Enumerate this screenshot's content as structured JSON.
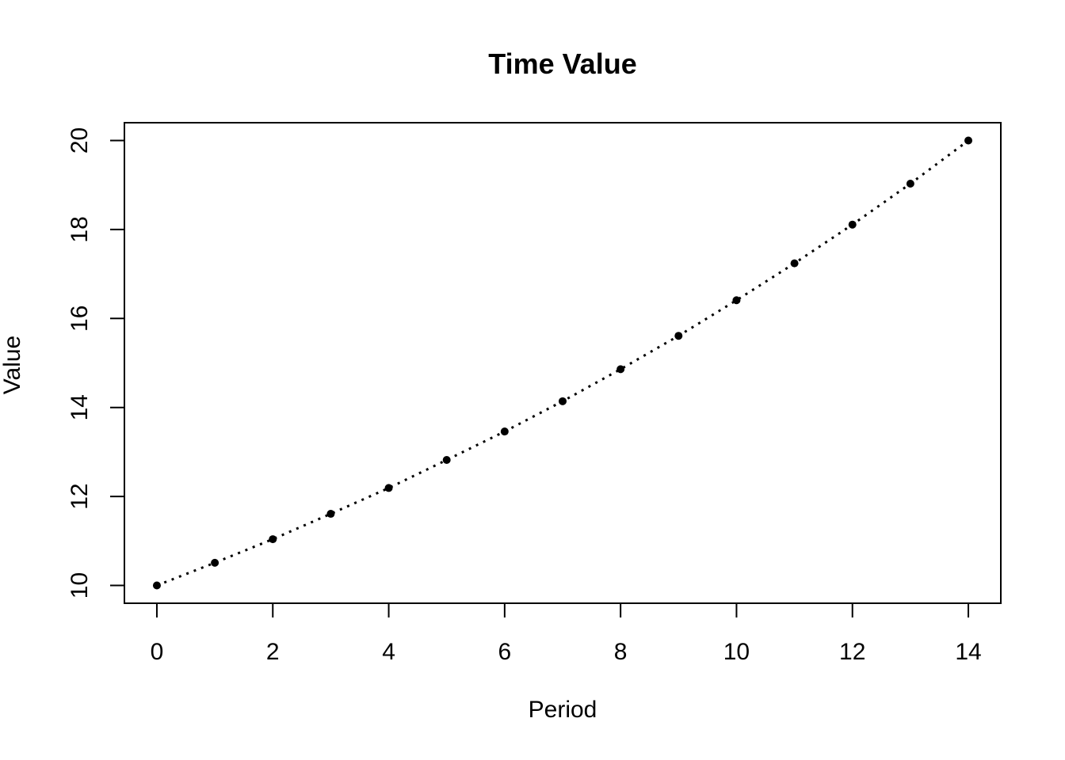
{
  "title": "Time Value",
  "colors": {
    "foreground": "#000000",
    "background": "#ffffff"
  },
  "chart_data": {
    "type": "scatter",
    "title": "Time Value",
    "xlabel": "Period",
    "ylabel": "Value",
    "x": [
      0,
      1,
      2,
      3,
      4,
      5,
      6,
      7,
      8,
      9,
      10,
      11,
      12,
      13,
      14
    ],
    "y": [
      10.0,
      10.51,
      11.04,
      11.61,
      12.19,
      12.82,
      13.46,
      14.14,
      14.86,
      15.61,
      16.41,
      17.24,
      18.11,
      19.03,
      20.0
    ],
    "x_ticks": [
      0,
      2,
      4,
      6,
      8,
      10,
      12,
      14
    ],
    "y_ticks": [
      10,
      12,
      14,
      16,
      18,
      20
    ],
    "xlim": [
      -0.56,
      14.56
    ],
    "ylim": [
      9.6,
      20.4
    ],
    "line_style": "dotted",
    "marker": "filled-circle",
    "series_color": "#000000",
    "grid": false,
    "legend": "none"
  }
}
